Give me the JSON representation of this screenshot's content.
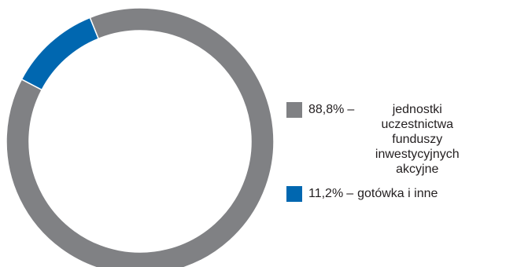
{
  "chart_data": {
    "type": "pie",
    "title": "",
    "donut": true,
    "series": [
      {
        "label": "jednostki uczestnictwa funduszy inwestycyjnych akcyjne",
        "value_label": "88,8%",
        "value": 88.8,
        "color": "#808184"
      },
      {
        "label": "gotówka i inne",
        "value_label": "11,2%",
        "value": 11.2,
        "color": "#0067b0"
      }
    ],
    "legend_position": "right"
  },
  "legend": {
    "separator": "–"
  }
}
